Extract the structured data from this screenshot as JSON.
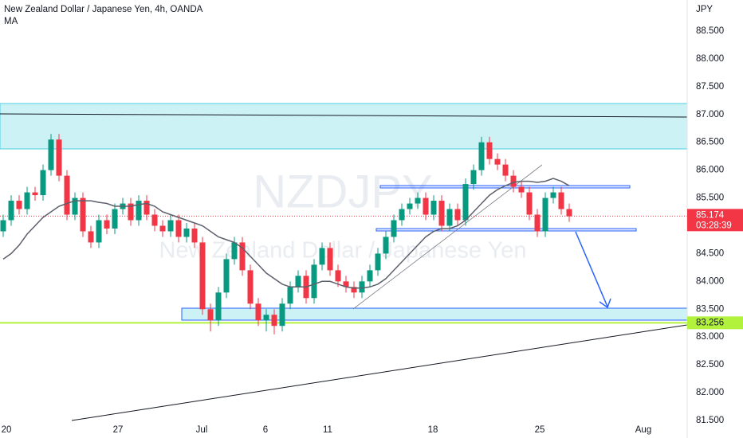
{
  "chart_data": {
    "type": "candlestick",
    "title": "New Zealand Dollar / Japanese Yen, 4h, OANDA",
    "indicator": "MA",
    "currency": "JPY",
    "watermark": {
      "symbol": "NZDJPY",
      "description": "New Zealand Dollar / Japanese Yen"
    },
    "up_color": "#089981",
    "down_color": "#f23645",
    "ma_color": "#5d606b",
    "open": [
      84.9,
      85.1,
      85.45,
      85.3,
      85.6,
      85.55,
      86.0,
      86.55,
      85.9,
      85.2,
      85.5,
      84.9,
      84.7,
      85.1,
      84.95,
      85.3,
      85.4,
      85.1,
      85.45,
      85.2,
      85.0,
      84.9,
      85.1,
      84.8,
      84.95,
      84.7,
      83.5,
      83.3,
      83.8,
      84.4,
      84.7,
      84.2,
      83.6,
      83.3,
      83.4,
      83.2,
      83.6,
      83.9,
      84.1,
      83.7,
      84.3,
      84.6,
      84.2,
      84.0,
      83.9,
      83.8,
      84.0,
      84.2,
      84.5,
      84.8,
      85.1,
      85.3,
      85.4,
      85.5,
      85.2,
      85.45,
      85.0,
      85.3,
      85.1,
      85.75,
      86.0,
      86.5,
      86.2,
      86.1,
      85.9,
      85.7,
      85.6,
      85.2,
      84.9,
      85.5,
      85.6,
      85.3
    ],
    "high": [
      85.2,
      85.55,
      85.55,
      85.7,
      85.7,
      86.1,
      86.65,
      86.65,
      86.0,
      85.6,
      85.6,
      85.0,
      85.2,
      85.2,
      85.4,
      85.5,
      85.5,
      85.55,
      85.55,
      85.3,
      85.1,
      85.2,
      85.2,
      85.05,
      85.05,
      84.8,
      83.6,
      83.9,
      84.5,
      84.8,
      84.8,
      84.3,
      83.7,
      83.5,
      83.5,
      83.7,
      84.0,
      84.2,
      84.2,
      84.4,
      84.7,
      84.7,
      84.3,
      84.1,
      84.0,
      84.1,
      84.3,
      84.6,
      84.9,
      85.2,
      85.4,
      85.5,
      85.6,
      85.6,
      85.55,
      85.55,
      85.4,
      85.4,
      85.85,
      86.1,
      86.6,
      86.6,
      86.3,
      86.2,
      86.0,
      85.8,
      85.7,
      85.3,
      85.6,
      85.7,
      85.7,
      85.4
    ],
    "low": [
      84.8,
      85.0,
      85.2,
      85.2,
      85.45,
      85.45,
      85.9,
      85.8,
      85.1,
      85.1,
      84.8,
      84.6,
      84.6,
      84.85,
      84.85,
      85.2,
      85.0,
      85.0,
      85.1,
      84.9,
      84.8,
      84.8,
      84.7,
      84.7,
      84.6,
      83.4,
      83.1,
      83.2,
      83.7,
      84.3,
      84.1,
      83.5,
      83.2,
      83.1,
      83.05,
      83.1,
      83.5,
      83.8,
      83.6,
      83.6,
      84.2,
      84.1,
      83.9,
      83.8,
      83.7,
      83.7,
      83.9,
      84.1,
      84.4,
      84.7,
      85.0,
      85.2,
      85.3,
      85.1,
      85.1,
      84.9,
      84.9,
      85.0,
      85.0,
      85.65,
      85.9,
      86.1,
      86.0,
      85.8,
      85.6,
      85.5,
      85.1,
      84.8,
      84.8,
      85.4,
      85.2,
      85.07
    ],
    "close": [
      85.1,
      85.45,
      85.3,
      85.6,
      85.55,
      86.0,
      86.55,
      85.9,
      85.2,
      85.5,
      84.9,
      84.7,
      85.1,
      84.95,
      85.3,
      85.4,
      85.1,
      85.45,
      85.2,
      85.0,
      84.9,
      85.1,
      84.8,
      84.95,
      84.7,
      83.5,
      83.3,
      83.8,
      84.4,
      84.7,
      84.2,
      83.6,
      83.3,
      83.4,
      83.2,
      83.6,
      83.9,
      84.1,
      83.7,
      84.3,
      84.6,
      84.2,
      84.0,
      83.9,
      83.8,
      84.0,
      84.2,
      84.5,
      84.8,
      85.1,
      85.3,
      85.4,
      85.5,
      85.2,
      85.45,
      85.0,
      85.3,
      85.1,
      85.75,
      86.0,
      86.5,
      86.2,
      86.1,
      85.9,
      85.7,
      85.6,
      85.2,
      84.9,
      85.5,
      85.6,
      85.3,
      85.17
    ],
    "ma": [
      84.4,
      84.5,
      84.65,
      84.85,
      85.0,
      85.15,
      85.25,
      85.35,
      85.4,
      85.45,
      85.45,
      85.45,
      85.42,
      85.4,
      85.35,
      85.35,
      85.35,
      85.38,
      85.4,
      85.35,
      85.25,
      85.2,
      85.15,
      85.1,
      85.05,
      85.0,
      84.9,
      84.8,
      84.75,
      84.7,
      84.6,
      84.45,
      84.3,
      84.15,
      84.05,
      83.95,
      83.9,
      83.9,
      83.9,
      83.95,
      84.0,
      84.0,
      83.95,
      83.9,
      83.88,
      83.88,
      83.9,
      83.95,
      84.05,
      84.2,
      84.35,
      84.5,
      84.65,
      84.8,
      84.9,
      84.95,
      84.95,
      85.0,
      85.1,
      85.25,
      85.4,
      85.55,
      85.65,
      85.72,
      85.78,
      85.8,
      85.8,
      85.78,
      85.8,
      85.85,
      85.8,
      85.72
    ],
    "xlim": [
      -0.4,
      85.8
    ],
    "xticks": [
      {
        "value": 0.4,
        "label": "20"
      },
      {
        "value": 14.4,
        "label": "27"
      },
      {
        "value": 24.9,
        "label": "Jul"
      },
      {
        "value": 32.9,
        "label": "6"
      },
      {
        "value": 40.7,
        "label": "11"
      },
      {
        "value": 53.9,
        "label": "18"
      },
      {
        "value": 67.3,
        "label": "25"
      },
      {
        "value": 80.3,
        "label": "Aug"
      }
    ],
    "ylim": [
      81.185,
      89.058
    ],
    "yticks": [
      {
        "value": 81.5,
        "label": "81.500"
      },
      {
        "value": 82,
        "label": "82.000"
      },
      {
        "value": 82.5,
        "label": "82.500"
      },
      {
        "value": 83,
        "label": "83.000"
      },
      {
        "value": 83.5,
        "label": "83.500"
      },
      {
        "value": 84,
        "label": "84.000"
      },
      {
        "value": 84.5,
        "label": "84.500"
      },
      {
        "value": 85,
        "label": "85.000"
      },
      {
        "value": 85.5,
        "label": "85.500"
      },
      {
        "value": 86,
        "label": "86.000"
      },
      {
        "value": 86.5,
        "label": "86.500"
      },
      {
        "value": 87,
        "label": "87.000"
      },
      {
        "value": 87.5,
        "label": "87.500"
      },
      {
        "value": 88,
        "label": "88.000"
      },
      {
        "value": 88.5,
        "label": "88.500"
      }
    ],
    "last_price": {
      "value": 85.174,
      "label": "85.174",
      "countdown": "03:28:39",
      "color": "#f23645"
    },
    "price_line": {
      "value": 83.256,
      "label": "83.256",
      "color": "#b2f23c"
    }
  }
}
